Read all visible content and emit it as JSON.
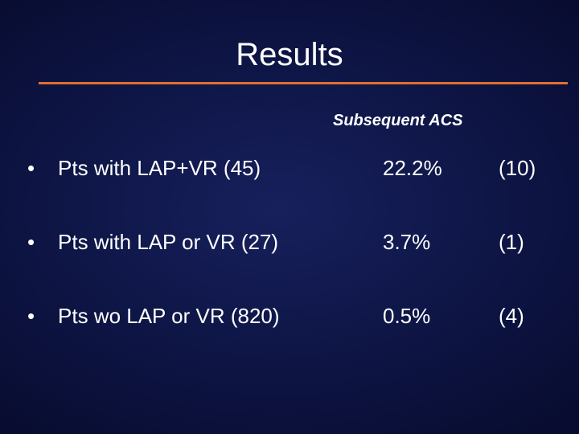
{
  "slide": {
    "title": "Results",
    "column_header": "Subsequent ACS",
    "rule_color": "#e07030",
    "background_color": "#0f1749",
    "bullet_glyph": "•",
    "rows": [
      {
        "label": "Pts with LAP+VR (45)",
        "percent": "22.2%",
        "count": "(10)"
      },
      {
        "label": "Pts with LAP or VR (27)",
        "percent": "3.7%",
        "count": "(1)"
      },
      {
        "label": "Pts wo LAP or VR (820)",
        "percent": "0.5%",
        "count": "(4)"
      }
    ]
  }
}
